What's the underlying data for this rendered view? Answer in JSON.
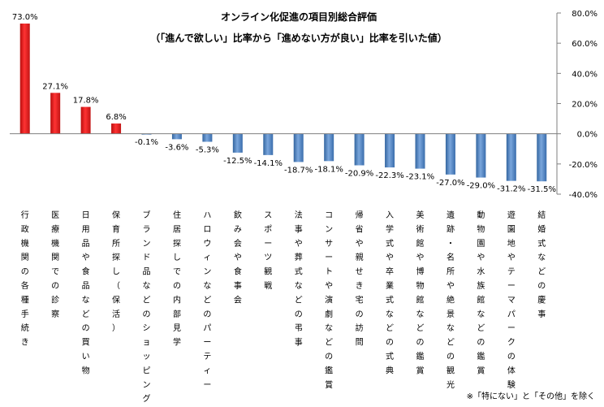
{
  "chart_data": {
    "type": "bar",
    "title": "オンライン化促進の項目別総合評価",
    "subtitle": "（「進んで欲しい」比率から「進めない方が良い」比率を引いた値）",
    "categories": [
      "行政機関の各種手続き",
      "医療機関での診察",
      "日用品や食品などの買い物",
      "保育所探し（保活）",
      "ブランド品などのショッピング",
      "住居探しでの内部見学",
      "ハロウィンなどのパーティー",
      "飲み会や食事会",
      "スポーツ観戦",
      "法事や葬式などの弔事",
      "コンサートや演劇などの鑑賞",
      "帰省や親せき宅の訪問",
      "入学式や卒業式などの式典",
      "美術館や博物館などの鑑賞",
      "遺跡・名所や絶景などの観光",
      "動物園や水族館などの鑑賞",
      "遊園地やテーマパークの体験",
      "結婚式などの慶事"
    ],
    "values": [
      73.0,
      27.1,
      17.8,
      6.8,
      -0.1,
      -3.6,
      -5.3,
      -12.5,
      -14.1,
      -18.7,
      -18.1,
      -20.9,
      -22.3,
      -23.1,
      -27.0,
      -29.0,
      -31.2,
      -31.5
    ],
    "data_labels": [
      "73.0%",
      "27.1%",
      "17.8%",
      "6.8%",
      "-0.1%",
      "-3.6%",
      "-5.3%",
      "-12.5%",
      "-14.1%",
      "-18.7%",
      "-18.1%",
      "-20.9%",
      "-22.3%",
      "-23.1%",
      "-27.0%",
      "-29.0%",
      "-31.2%",
      "-31.5%"
    ],
    "ylim": [
      -40,
      80
    ],
    "yticks": [
      80,
      60,
      40,
      20,
      0,
      -20,
      -40
    ],
    "ytick_labels": [
      "80.0%",
      "60.0%",
      "40.0%",
      "20.0%",
      "0.0%",
      "-20.0%",
      "-40.0%"
    ],
    "y_axis_side": "right",
    "positive_color": "#e51c1c",
    "negative_color": "#4a7fc1",
    "grid": false,
    "xlabel": "",
    "ylabel": ""
  },
  "footnote": "※「特にない」と「その他」を除く"
}
